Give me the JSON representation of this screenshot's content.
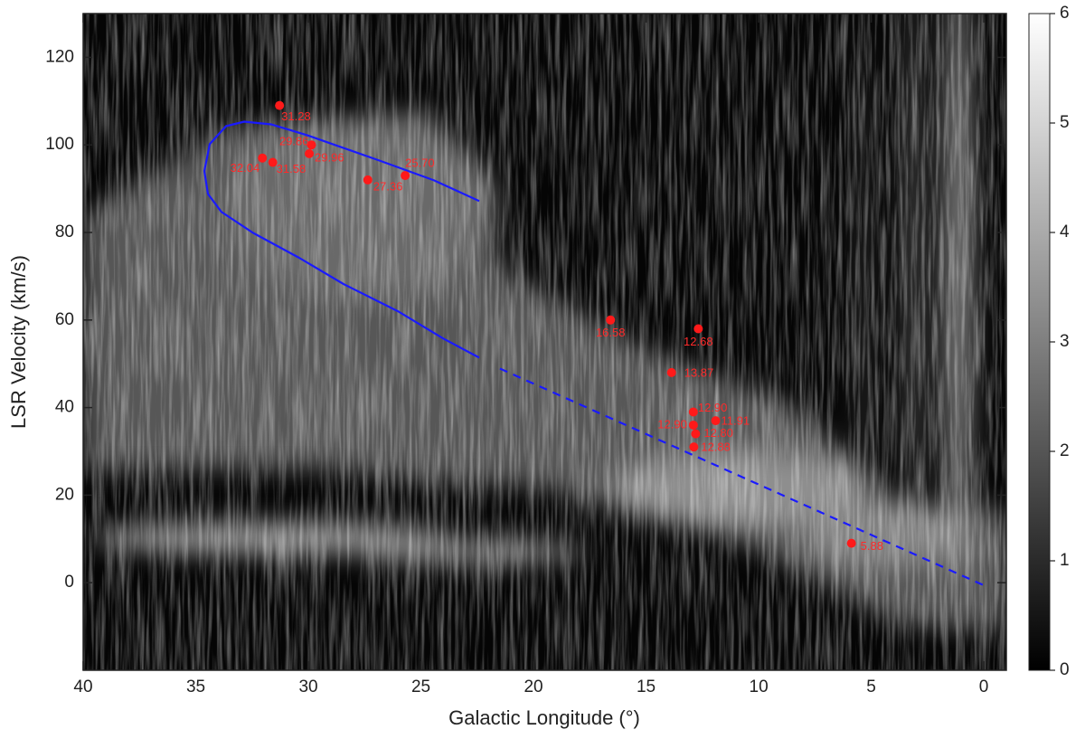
{
  "chart_data": {
    "type": "scatter",
    "xlabel": "Galactic Longitude (°)",
    "ylabel": "LSR Velocity (km/s)",
    "xlim": [
      40,
      -1
    ],
    "ylim": [
      -20,
      130
    ],
    "xticks": [
      40,
      35,
      30,
      25,
      20,
      15,
      10,
      5,
      0
    ],
    "yticks": [
      0,
      20,
      40,
      60,
      80,
      100,
      120
    ],
    "point_color": "#ff1a1a",
    "x": [
      31.28,
      29.86,
      29.96,
      32.04,
      31.58,
      27.36,
      25.7,
      16.58,
      12.68,
      13.87,
      12.9,
      12.9,
      11.91,
      12.8,
      12.88,
      5.88
    ],
    "values": [
      109,
      100,
      98,
      97,
      96,
      92,
      93,
      60,
      58,
      48,
      39,
      36,
      37,
      34,
      31,
      9
    ],
    "value_labels": [
      "31.28",
      "29.86",
      "29.96",
      "32.04",
      "31.58",
      "27.36",
      "25.70",
      "16.58",
      "12.68",
      "13.87",
      "12.90",
      "12.90",
      "11.91",
      "12.80",
      "12.88",
      "5.88"
    ],
    "lines": [
      {
        "style": "solid",
        "color": "#1a1aff",
        "x": [
          22.41,
          24.42,
          26.83,
          30.04,
          31.65,
          32.85,
          33.65,
          34.38,
          34.62,
          34.46,
          33.86,
          32.45,
          30.44,
          28.43,
          26.02,
          24.02,
          22.41
        ],
        "y": [
          87.2,
          91.9,
          96.4,
          102.2,
          104.7,
          105.3,
          104.3,
          100.2,
          94.0,
          88.8,
          84.7,
          79.9,
          74.3,
          68.2,
          62.0,
          55.8,
          51.4
        ]
      },
      {
        "style": "dashed",
        "color": "#1a1aff",
        "x": [
          21.49,
          0.0
        ],
        "y": [
          48.9,
          -0.6
        ]
      }
    ],
    "colorbar": {
      "lim": [
        0,
        6
      ],
      "ticks": [
        0,
        1,
        2,
        3,
        4,
        5,
        6
      ]
    }
  }
}
